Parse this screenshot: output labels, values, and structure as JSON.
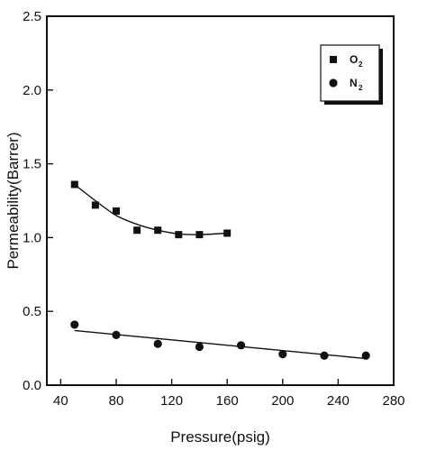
{
  "chart_data": {
    "type": "scatter",
    "title": "",
    "xlabel": "Pressure(psig)",
    "ylabel": "Permeability(Barrer)",
    "xlim": [
      30,
      280
    ],
    "ylim": [
      0.0,
      2.5
    ],
    "x_ticks": [
      40,
      80,
      120,
      160,
      200,
      240,
      280
    ],
    "y_ticks": [
      "0.0",
      "0.5",
      "1.0",
      "1.5",
      "2.0",
      "2.5"
    ],
    "y_tick_values": [
      0.0,
      0.5,
      1.0,
      1.5,
      2.0,
      2.5
    ],
    "grid": false,
    "legend_position": "top-right",
    "series": [
      {
        "name": "O",
        "subscript": "2",
        "marker": "square",
        "color": "#111111",
        "points": [
          {
            "x": 50,
            "y": 1.36
          },
          {
            "x": 65,
            "y": 1.22
          },
          {
            "x": 80,
            "y": 1.18
          },
          {
            "x": 95,
            "y": 1.05
          },
          {
            "x": 110,
            "y": 1.05
          },
          {
            "x": 125,
            "y": 1.02
          },
          {
            "x": 140,
            "y": 1.02
          },
          {
            "x": 160,
            "y": 1.03
          }
        ],
        "fit": [
          {
            "x": 50,
            "y": 1.36
          },
          {
            "x": 65,
            "y": 1.25
          },
          {
            "x": 80,
            "y": 1.15
          },
          {
            "x": 95,
            "y": 1.09
          },
          {
            "x": 110,
            "y": 1.05
          },
          {
            "x": 125,
            "y": 1.025
          },
          {
            "x": 140,
            "y": 1.02
          },
          {
            "x": 160,
            "y": 1.03
          }
        ]
      },
      {
        "name": "N",
        "subscript": "2",
        "marker": "circle",
        "color": "#111111",
        "points": [
          {
            "x": 50,
            "y": 0.41
          },
          {
            "x": 80,
            "y": 0.34
          },
          {
            "x": 110,
            "y": 0.28
          },
          {
            "x": 140,
            "y": 0.26
          },
          {
            "x": 170,
            "y": 0.27
          },
          {
            "x": 200,
            "y": 0.21
          },
          {
            "x": 230,
            "y": 0.2
          },
          {
            "x": 260,
            "y": 0.2
          }
        ],
        "fit": [
          {
            "x": 50,
            "y": 0.37
          },
          {
            "x": 260,
            "y": 0.18
          }
        ]
      }
    ]
  }
}
